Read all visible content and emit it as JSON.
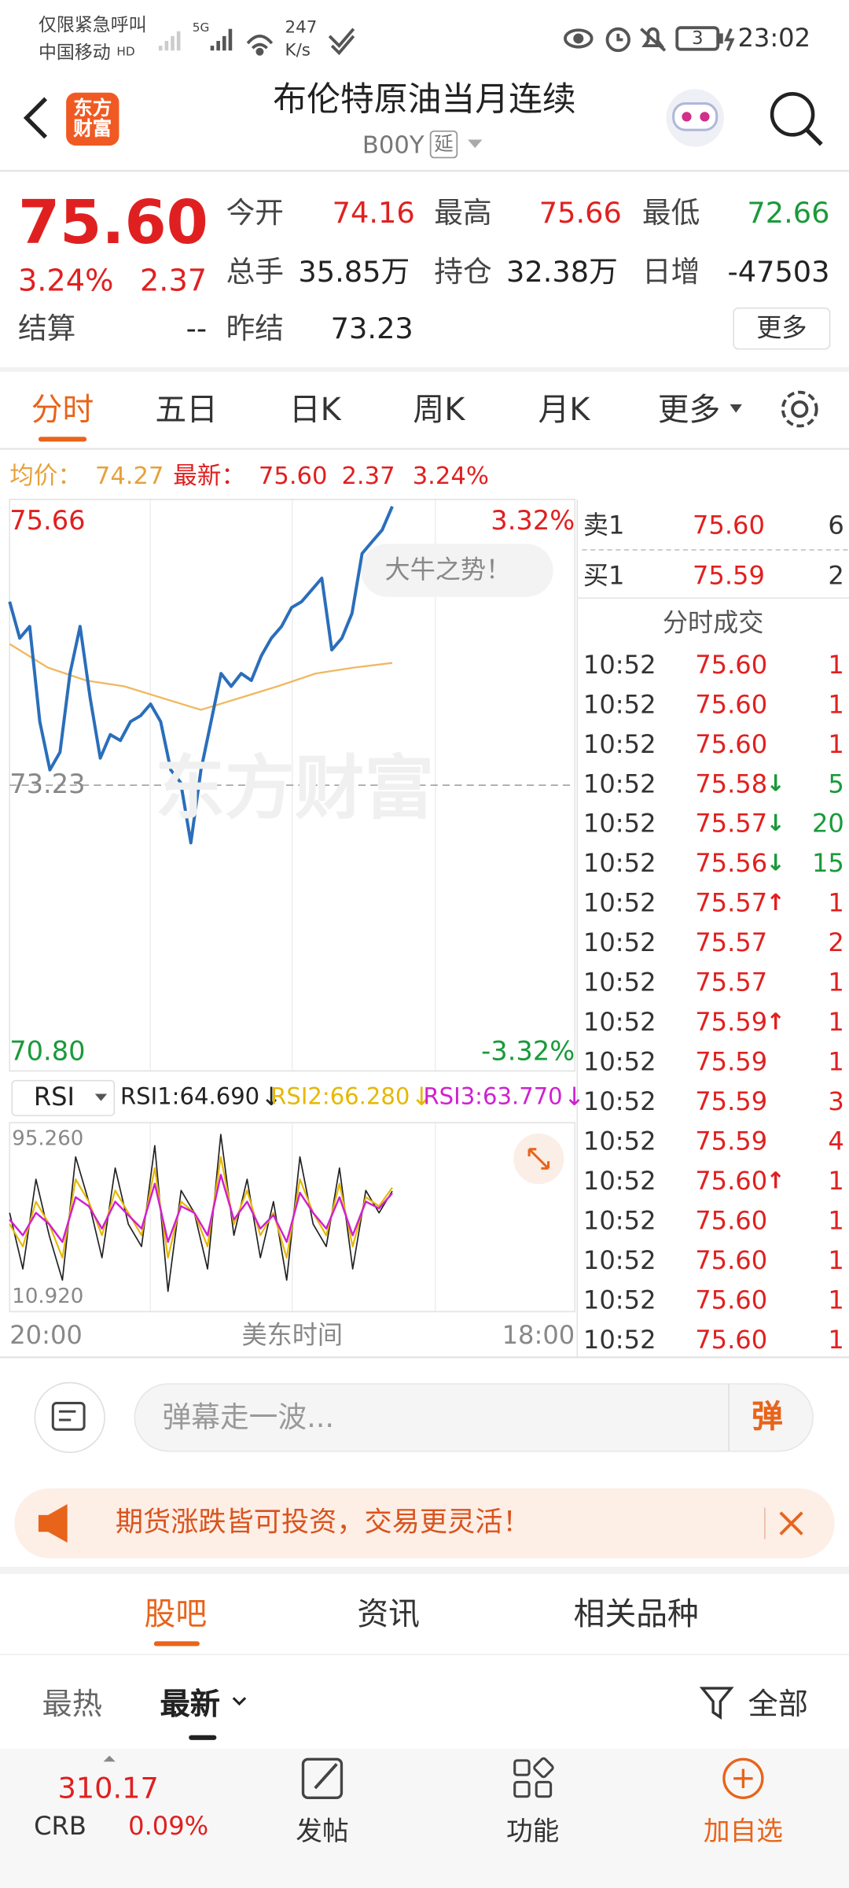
{
  "status_bar": {
    "carrier_note": "仅限紧急呼叫",
    "carrier": "中国移动",
    "hd": "HD",
    "network": "5G",
    "speed": "247",
    "speed_unit": "K/s",
    "battery": "3",
    "time": "23:02"
  },
  "header": {
    "logo": "东方财富",
    "title": "布伦特原油当月连续",
    "code": "B00Y",
    "delay": "延"
  },
  "quote": {
    "price": "75.60",
    "change_pct": "3.24%",
    "change": "2.37",
    "open_label": "今开",
    "open": "74.16",
    "high_label": "最高",
    "high": "75.66",
    "low_label": "最低",
    "low": "72.66",
    "volume_label": "总手",
    "volume": "35.85万",
    "oi_label": "持仓",
    "oi": "32.38万",
    "daily_inc_label": "日增",
    "daily_inc": "-47503",
    "settle_label": "结算",
    "settle": "--",
    "prev_settle_label": "昨结",
    "prev_settle": "73.23",
    "more": "更多"
  },
  "tabs": {
    "items": [
      "分时",
      "五日",
      "日K",
      "周K",
      "月K",
      "更多"
    ],
    "active": 0
  },
  "chart_data": [
    {
      "type": "line",
      "info": {
        "avg": "74.27",
        "latest": "75.60",
        "change": "2.37",
        "pct": "3.24%"
      },
      "series": [
        {
          "name": "均价：",
          "color": "#f0b860",
          "values": [
            74.43,
            74.23,
            74.12,
            74.07,
            73.97,
            73.87,
            73.97,
            74.07,
            74.18,
            74.23,
            74.27
          ]
        },
        {
          "name": "最新：",
          "color": "#2a6ebb",
          "values": [
            74.79,
            74.48,
            74.58,
            73.77,
            73.36,
            73.51,
            74.18,
            74.58,
            73.97,
            73.46,
            73.66,
            73.61,
            73.77,
            73.82,
            73.92,
            73.77,
            73.36,
            73.25,
            72.74,
            73.36,
            73.77,
            74.18,
            74.07,
            74.18,
            74.12,
            74.33,
            74.48,
            74.58,
            74.74,
            74.79,
            74.89,
            74.99,
            74.38,
            74.48,
            74.69,
            75.2,
            75.3,
            75.4,
            75.6
          ]
        }
      ],
      "ylim": [
        70.8,
        75.66
      ],
      "yticks": [
        {
          "value": 70.8,
          "label": "70.80"
        },
        73.23,
        75.66
      ],
      "y2lim": [
        -3.32,
        3.32
      ],
      "y2ticks": [
        {
          "value": -3.32,
          "label": "-3.32%"
        },
        {
          "value": 3.32,
          "label": "3.32%"
        }
      ],
      "x_labels": [
        "20:00",
        "18:00"
      ],
      "x_axis_label": "美东时间",
      "annotation": "大牛之势！",
      "watermark": "东方财富"
    },
    {
      "type": "line",
      "indicator": "RSI",
      "series": [
        {
          "name": "RSI1:64.690",
          "arrow": "↓",
          "color": "#222222",
          "values": [
            55,
            30,
            70,
            45,
            25,
            80,
            60,
            35,
            75,
            50,
            40,
            85,
            20,
            65,
            55,
            30,
            90,
            45,
            70,
            35,
            60,
            25,
            80,
            50,
            40,
            75,
            30,
            65,
            55,
            64.69
          ]
        },
        {
          "name": "RSI2:66.280",
          "arrow": "↓",
          "color": "#e6b800",
          "values": [
            50,
            40,
            60,
            50,
            35,
            70,
            60,
            45,
            65,
            55,
            45,
            75,
            35,
            60,
            55,
            40,
            80,
            50,
            65,
            45,
            55,
            35,
            70,
            55,
            45,
            68,
            40,
            62,
            58,
            66.28
          ]
        },
        {
          "name": "RSI3:63.770",
          "arrow": "↓",
          "color": "#d020d0",
          "values": [
            52,
            45,
            55,
            50,
            42,
            62,
            58,
            48,
            60,
            54,
            48,
            68,
            42,
            58,
            55,
            45,
            72,
            52,
            60,
            48,
            54,
            42,
            64,
            55,
            48,
            62,
            45,
            60,
            57,
            63.77
          ]
        }
      ],
      "ylim": [
        10.92,
        95.26
      ],
      "yticks": [
        {
          "value": 10.92,
          "label": "10.920"
        },
        {
          "value": 95.26,
          "label": "95.260"
        }
      ]
    }
  ],
  "order_book": {
    "sell": {
      "label": "卖1",
      "price": "75.60",
      "qty": "6"
    },
    "buy": {
      "label": "买1",
      "price": "75.59",
      "qty": "2"
    }
  },
  "trades": {
    "title": "分时成交",
    "rows": [
      {
        "time": "10:52",
        "price": "75.60",
        "vol": "1"
      },
      {
        "time": "10:52",
        "price": "75.60",
        "vol": "1"
      },
      {
        "time": "10:52",
        "price": "75.60",
        "vol": "1"
      },
      {
        "time": "10:52",
        "price": "75.58",
        "dir": "↓",
        "vol": "5"
      },
      {
        "time": "10:52",
        "price": "75.57",
        "dir": "↓",
        "vol": "20"
      },
      {
        "time": "10:52",
        "price": "75.56",
        "dir": "↓",
        "vol": "15"
      },
      {
        "time": "10:52",
        "price": "75.57",
        "dir": "↑",
        "vol": "1"
      },
      {
        "time": "10:52",
        "price": "75.57",
        "vol": "2"
      },
      {
        "time": "10:52",
        "price": "75.57",
        "vol": "1"
      },
      {
        "time": "10:52",
        "price": "75.59",
        "dir": "↑",
        "vol": "1"
      },
      {
        "time": "10:52",
        "price": "75.59",
        "vol": "1"
      },
      {
        "time": "10:52",
        "price": "75.59",
        "vol": "3"
      },
      {
        "time": "10:52",
        "price": "75.59",
        "vol": "4"
      },
      {
        "time": "10:52",
        "price": "75.60",
        "dir": "↑",
        "vol": "1"
      },
      {
        "time": "10:52",
        "price": "75.60",
        "vol": "1"
      },
      {
        "time": "10:52",
        "price": "75.60",
        "vol": "1"
      },
      {
        "time": "10:52",
        "price": "75.60",
        "vol": "1"
      },
      {
        "time": "10:52",
        "price": "75.60",
        "vol": "1"
      }
    ]
  },
  "comment": {
    "placeholder": "弹幕走一波...",
    "danmu": "弹"
  },
  "banner": {
    "text": "期货涨跌皆可投资，交易更灵活！"
  },
  "community": {
    "tabs": [
      "股吧",
      "资讯",
      "相关品种"
    ],
    "active": 0,
    "filters": [
      "最热",
      "最新"
    ],
    "filter_active": 1,
    "all": "全部"
  },
  "bottom_nav": {
    "index": {
      "value": "310.17",
      "name": "CRB",
      "pct": "0.09%"
    },
    "items": [
      "发帖",
      "功能",
      "加自选"
    ]
  }
}
